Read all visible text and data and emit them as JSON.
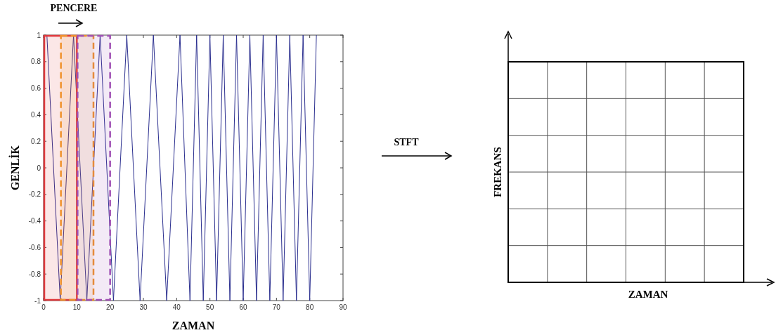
{
  "chart_data": [
    {
      "type": "line",
      "xlabel": "ZAMAN",
      "ylabel": "GENLİK",
      "annotations": [
        "PENCERE"
      ],
      "series": [
        {
          "color": "#2b2f8f",
          "x": [
            1,
            5,
            9,
            13,
            17,
            21,
            25,
            29,
            33,
            37,
            41,
            44,
            46,
            48,
            50,
            52,
            54,
            56,
            58,
            60,
            62,
            64,
            66,
            68,
            70,
            72,
            74,
            76,
            78,
            80,
            82
          ],
          "values": [
            1,
            -1,
            1,
            -1,
            1,
            -1,
            1,
            -1,
            1,
            -1,
            1,
            -1,
            1,
            -1,
            1,
            -1,
            1,
            -1,
            1,
            -1,
            1,
            -1,
            1,
            -1,
            1,
            -1,
            1,
            -1,
            1,
            -1,
            1
          ]
        }
      ],
      "xlim": [
        0,
        90
      ],
      "xticks": [
        0,
        10,
        20,
        30,
        40,
        50,
        60,
        70,
        80,
        90
      ],
      "ylim": [
        -1,
        1
      ],
      "yticks": [
        -1,
        -0.8,
        -0.6,
        -0.4,
        -0.2,
        0,
        0.2,
        0.4,
        0.6,
        0.8,
        1
      ],
      "bands": [
        {
          "axis": "x",
          "from": 0,
          "to": 10,
          "color": "#e0383c"
        },
        {
          "axis": "x",
          "from": 5,
          "to": 15,
          "color": "#f0922c"
        },
        {
          "axis": "x",
          "from": 10,
          "to": 20,
          "color": "#a050b4"
        }
      ]
    },
    {
      "type": "other",
      "xlabel": "ZAMAN",
      "ylabel": "FREKANS",
      "annotations": [
        "STFT"
      ]
    }
  ]
}
